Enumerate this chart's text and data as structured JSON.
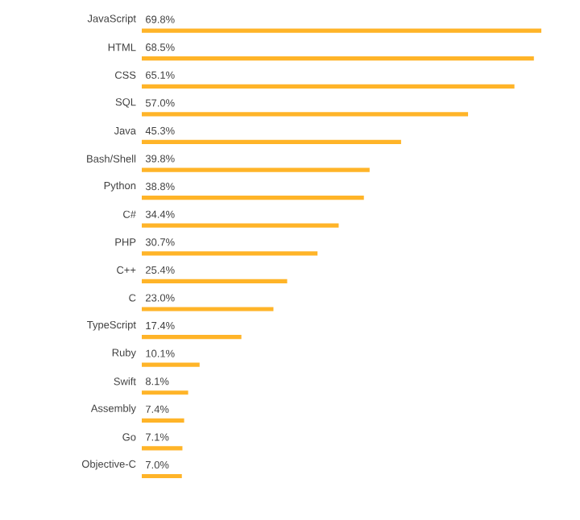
{
  "chart_data": {
    "type": "bar",
    "orientation": "horizontal",
    "categories": [
      "JavaScript",
      "HTML",
      "CSS",
      "SQL",
      "Java",
      "Bash/Shell",
      "Python",
      "C#",
      "PHP",
      "C++",
      "C",
      "TypeScript",
      "Ruby",
      "Swift",
      "Assembly",
      "Go",
      "Objective-C"
    ],
    "values": [
      69.8,
      68.5,
      65.1,
      57.0,
      45.3,
      39.8,
      38.8,
      34.4,
      30.7,
      25.4,
      23.0,
      17.4,
      10.1,
      8.1,
      7.4,
      7.1,
      7.0
    ],
    "value_labels": [
      "69.8%",
      "68.5%",
      "65.1%",
      "57.0%",
      "45.3%",
      "39.8%",
      "38.8%",
      "34.4%",
      "30.7%",
      "25.4%",
      "23.0%",
      "17.4%",
      "10.1%",
      "8.1%",
      "7.4%",
      "7.1%",
      "7.0%"
    ],
    "color": "#ffb428"
  }
}
